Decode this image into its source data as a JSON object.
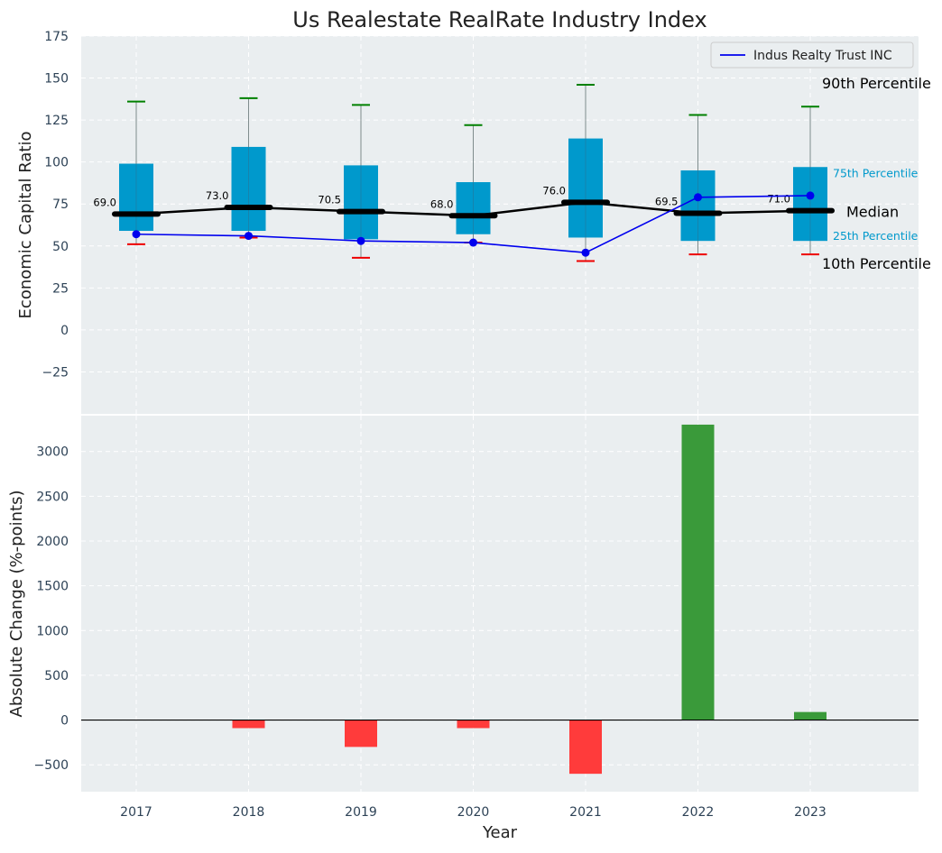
{
  "chart_data": [
    {
      "type": "box",
      "title": "Us Realestate RealRate Industry Index",
      "ylabel": "Economic Capital Ratio",
      "ylim": [
        -50,
        175
      ],
      "yticks": [
        -25,
        0,
        25,
        50,
        75,
        100,
        125,
        150,
        175
      ],
      "ytick_labels": [
        "−25",
        "0",
        "25",
        "50",
        "75",
        "100",
        "125",
        "150",
        "175"
      ],
      "grid": true,
      "categories": [
        "2017",
        "2018",
        "2019",
        "2020",
        "2021",
        "2022",
        "2023"
      ],
      "p10": [
        51,
        55,
        43,
        52,
        41,
        45,
        45
      ],
      "p25": [
        59,
        59,
        54,
        57,
        55,
        53,
        53
      ],
      "median": [
        69.0,
        73.0,
        70.5,
        68.0,
        76.0,
        69.5,
        71.0
      ],
      "median_labels": [
        "69.0",
        "73.0",
        "70.5",
        "68.0",
        "76.0",
        "69.5",
        "71.0"
      ],
      "p75": [
        99,
        109,
        98,
        88,
        114,
        95,
        97
      ],
      "p90": [
        136,
        138,
        134,
        122,
        146,
        128,
        133
      ],
      "series": [
        {
          "name": "Indus Realty Trust INC",
          "values": [
            57,
            56,
            53,
            52,
            46,
            79,
            80
          ],
          "color": "#0000ee"
        }
      ],
      "legend": {
        "position": "top-right",
        "entries": [
          "Indus Realty Trust INC"
        ]
      },
      "annotations": {
        "p90": "90th Percentile",
        "p75": "75th Percentile",
        "median": "Median",
        "p25": "25th Percentile",
        "p10": "10th Percentile"
      },
      "colors": {
        "box": "#0099cc",
        "median": "#000000",
        "whisker_top": "#008000",
        "whisker_bottom": "#ee0000",
        "background": "#eaeef0",
        "percentile_label": "#0099cc"
      }
    },
    {
      "type": "bar",
      "ylabel": "Absolute Change (%-points)",
      "xlabel": "Year",
      "ylim": [
        -800,
        3400
      ],
      "yticks": [
        -500,
        0,
        500,
        1000,
        1500,
        2000,
        2500,
        3000
      ],
      "ytick_labels": [
        "−500",
        "0",
        "500",
        "1000",
        "1500",
        "2000",
        "2500",
        "3000"
      ],
      "grid": true,
      "categories": [
        "2017",
        "2018",
        "2019",
        "2020",
        "2021",
        "2022",
        "2023"
      ],
      "values": [
        0,
        -90,
        -300,
        -90,
        -600,
        3300,
        90
      ],
      "colors": {
        "positive": "#3a9a3a",
        "negative": "#ff3b3b",
        "zero_line": "#000000"
      }
    }
  ]
}
